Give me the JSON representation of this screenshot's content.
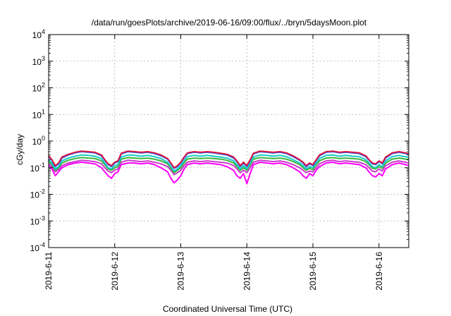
{
  "chart_data": {
    "type": "line",
    "title": "/data/run/goesPlots/archive/2019-06-16/09:00/flux/../bryn/5daysMoon.plot",
    "xlabel": "Coordinated Universal Time (UTC)",
    "ylabel": "cGy/day",
    "y_scale": "log",
    "ylim": [
      0.0001,
      10000
    ],
    "y_ticks": [
      {
        "value": 10000,
        "base": "10",
        "exp": "4"
      },
      {
        "value": 1000,
        "base": "10",
        "exp": "3"
      },
      {
        "value": 100,
        "base": "10",
        "exp": "2"
      },
      {
        "value": 10,
        "base": "10",
        "exp": "1"
      },
      {
        "value": 1,
        "base": "10",
        "exp": "0"
      },
      {
        "value": 0.1,
        "base": "10",
        "exp": "-1"
      },
      {
        "value": 0.01,
        "base": "10",
        "exp": "-2"
      },
      {
        "value": 0.001,
        "base": "10",
        "exp": "-3"
      },
      {
        "value": 0.0001,
        "base": "10",
        "exp": "-4"
      }
    ],
    "x_range_days": [
      0,
      5.45
    ],
    "x_ticks": [
      {
        "day": 0,
        "label": "2019-6-11"
      },
      {
        "day": 1,
        "label": "2019-6-12"
      },
      {
        "day": 2,
        "label": "2019-6-13"
      },
      {
        "day": 3,
        "label": "2019-6-14"
      },
      {
        "day": 4,
        "label": "2019-6-15"
      },
      {
        "day": 5,
        "label": "2019-6-16"
      }
    ],
    "grid": true,
    "legend": "none",
    "x": [
      0.0,
      0.05,
      0.1,
      0.15,
      0.2,
      0.3,
      0.4,
      0.5,
      0.6,
      0.7,
      0.8,
      0.85,
      0.9,
      0.95,
      1.0,
      1.05,
      1.1,
      1.2,
      1.3,
      1.4,
      1.5,
      1.6,
      1.7,
      1.8,
      1.85,
      1.9,
      1.95,
      2.0,
      2.05,
      2.1,
      2.2,
      2.3,
      2.4,
      2.5,
      2.6,
      2.7,
      2.8,
      2.85,
      2.9,
      2.95,
      3.0,
      3.05,
      3.1,
      3.2,
      3.3,
      3.4,
      3.5,
      3.6,
      3.7,
      3.8,
      3.85,
      3.9,
      3.95,
      4.0,
      4.05,
      4.1,
      4.2,
      4.3,
      4.4,
      4.5,
      4.6,
      4.7,
      4.8,
      4.85,
      4.9,
      4.95,
      5.0,
      5.05,
      5.1,
      5.2,
      5.3,
      5.35,
      5.4,
      5.45
    ],
    "series": [
      {
        "color": "#e0143c",
        "values": [
          0.28,
          0.2,
          0.12,
          0.15,
          0.25,
          0.32,
          0.38,
          0.42,
          0.4,
          0.38,
          0.3,
          0.2,
          0.14,
          0.12,
          0.16,
          0.18,
          0.35,
          0.42,
          0.4,
          0.38,
          0.4,
          0.36,
          0.3,
          0.22,
          0.15,
          0.1,
          0.12,
          0.16,
          0.25,
          0.36,
          0.4,
          0.38,
          0.4,
          0.38,
          0.35,
          0.32,
          0.25,
          0.18,
          0.12,
          0.16,
          0.12,
          0.2,
          0.35,
          0.42,
          0.4,
          0.38,
          0.4,
          0.36,
          0.28,
          0.2,
          0.16,
          0.12,
          0.15,
          0.13,
          0.2,
          0.3,
          0.4,
          0.42,
          0.38,
          0.4,
          0.38,
          0.36,
          0.28,
          0.2,
          0.15,
          0.14,
          0.18,
          0.15,
          0.25,
          0.36,
          0.4,
          0.38,
          0.36,
          0.34
        ]
      },
      {
        "color": "#1e64ff",
        "values": [
          0.26,
          0.19,
          0.11,
          0.14,
          0.23,
          0.3,
          0.36,
          0.4,
          0.38,
          0.36,
          0.28,
          0.19,
          0.13,
          0.11,
          0.15,
          0.17,
          0.33,
          0.4,
          0.38,
          0.36,
          0.38,
          0.34,
          0.28,
          0.21,
          0.14,
          0.095,
          0.11,
          0.15,
          0.23,
          0.34,
          0.38,
          0.36,
          0.38,
          0.36,
          0.33,
          0.3,
          0.23,
          0.17,
          0.11,
          0.15,
          0.11,
          0.19,
          0.33,
          0.4,
          0.38,
          0.36,
          0.38,
          0.34,
          0.26,
          0.19,
          0.15,
          0.11,
          0.14,
          0.12,
          0.19,
          0.28,
          0.38,
          0.4,
          0.36,
          0.38,
          0.36,
          0.34,
          0.26,
          0.19,
          0.14,
          0.13,
          0.17,
          0.14,
          0.23,
          0.34,
          0.38,
          0.36,
          0.34,
          0.32
        ]
      },
      {
        "color": "#18c8c8",
        "values": [
          0.2,
          0.15,
          0.09,
          0.11,
          0.18,
          0.23,
          0.27,
          0.3,
          0.29,
          0.27,
          0.22,
          0.15,
          0.1,
          0.09,
          0.12,
          0.13,
          0.25,
          0.3,
          0.29,
          0.27,
          0.29,
          0.26,
          0.22,
          0.16,
          0.11,
          0.075,
          0.09,
          0.12,
          0.18,
          0.26,
          0.29,
          0.27,
          0.29,
          0.27,
          0.25,
          0.23,
          0.18,
          0.13,
          0.09,
          0.12,
          0.09,
          0.15,
          0.25,
          0.3,
          0.29,
          0.27,
          0.29,
          0.26,
          0.2,
          0.15,
          0.12,
          0.09,
          0.11,
          0.1,
          0.15,
          0.22,
          0.29,
          0.3,
          0.27,
          0.29,
          0.27,
          0.26,
          0.2,
          0.15,
          0.11,
          0.1,
          0.13,
          0.11,
          0.18,
          0.26,
          0.29,
          0.27,
          0.26,
          0.24
        ]
      },
      {
        "color": "#3cb43c",
        "values": [
          0.17,
          0.13,
          0.08,
          0.1,
          0.15,
          0.19,
          0.22,
          0.24,
          0.23,
          0.22,
          0.18,
          0.13,
          0.09,
          0.08,
          0.1,
          0.11,
          0.21,
          0.24,
          0.23,
          0.22,
          0.23,
          0.21,
          0.18,
          0.14,
          0.095,
          0.065,
          0.08,
          0.1,
          0.15,
          0.21,
          0.23,
          0.22,
          0.23,
          0.22,
          0.21,
          0.19,
          0.15,
          0.11,
          0.08,
          0.1,
          0.08,
          0.13,
          0.21,
          0.24,
          0.23,
          0.22,
          0.23,
          0.21,
          0.17,
          0.13,
          0.1,
          0.08,
          0.095,
          0.085,
          0.13,
          0.18,
          0.23,
          0.24,
          0.22,
          0.23,
          0.22,
          0.21,
          0.17,
          0.13,
          0.095,
          0.09,
          0.11,
          0.095,
          0.15,
          0.21,
          0.23,
          0.22,
          0.21,
          0.2
        ]
      },
      {
        "color": "#c83cc8",
        "values": [
          0.14,
          0.11,
          0.07,
          0.085,
          0.12,
          0.15,
          0.17,
          0.19,
          0.18,
          0.17,
          0.14,
          0.1,
          0.075,
          0.065,
          0.08,
          0.09,
          0.16,
          0.19,
          0.18,
          0.17,
          0.18,
          0.16,
          0.14,
          0.11,
          0.08,
          0.055,
          0.065,
          0.08,
          0.12,
          0.16,
          0.18,
          0.17,
          0.18,
          0.17,
          0.16,
          0.15,
          0.12,
          0.09,
          0.065,
          0.08,
          0.065,
          0.1,
          0.16,
          0.19,
          0.18,
          0.17,
          0.18,
          0.16,
          0.13,
          0.1,
          0.08,
          0.065,
          0.075,
          0.07,
          0.1,
          0.14,
          0.18,
          0.19,
          0.17,
          0.18,
          0.17,
          0.16,
          0.13,
          0.1,
          0.075,
          0.07,
          0.09,
          0.075,
          0.12,
          0.16,
          0.18,
          0.17,
          0.16,
          0.15
        ]
      },
      {
        "color": "#ff00ff",
        "values": [
          0.12,
          0.09,
          0.05,
          0.07,
          0.1,
          0.13,
          0.15,
          0.16,
          0.15,
          0.14,
          0.1,
          0.07,
          0.05,
          0.04,
          0.06,
          0.07,
          0.13,
          0.15,
          0.15,
          0.14,
          0.15,
          0.13,
          0.1,
          0.07,
          0.04,
          0.027,
          0.035,
          0.05,
          0.09,
          0.13,
          0.15,
          0.14,
          0.15,
          0.14,
          0.13,
          0.11,
          0.08,
          0.05,
          0.04,
          0.06,
          0.025,
          0.06,
          0.13,
          0.16,
          0.15,
          0.14,
          0.15,
          0.13,
          0.1,
          0.07,
          0.05,
          0.04,
          0.06,
          0.05,
          0.08,
          0.11,
          0.15,
          0.16,
          0.14,
          0.15,
          0.14,
          0.13,
          0.1,
          0.07,
          0.05,
          0.045,
          0.06,
          0.05,
          0.09,
          0.13,
          0.15,
          0.14,
          0.13,
          0.12
        ]
      }
    ]
  }
}
